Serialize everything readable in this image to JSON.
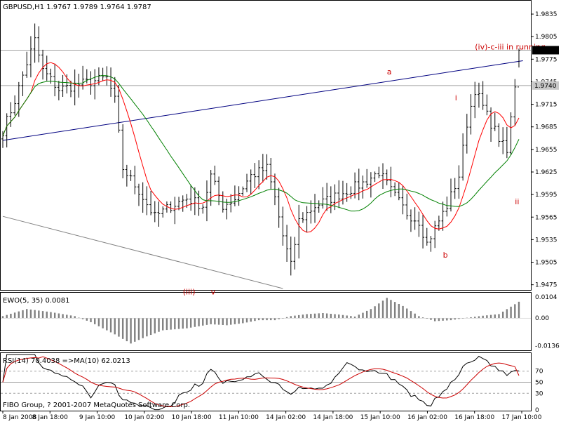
{
  "header": {
    "symbol_line": "GBPUSD,H1  1.9767 1.9789 1.9764 1.9787"
  },
  "footer": {
    "copyright": "FIBO Group, ? 2001-2007 MetaQuotes Software Corp."
  },
  "chart_data": [
    {
      "type": "candlestick",
      "panel": "main",
      "symbol": "GBPUSD",
      "timeframe": "H1",
      "ohlc_last": {
        "open": 1.9767,
        "high": 1.9789,
        "low": 1.9764,
        "close": 1.9787
      },
      "y_ticks": [
        "1.9835",
        "1.9805",
        "1.9775",
        "1.9745",
        "1.9715",
        "1.9685",
        "1.9655",
        "1.9625",
        "1.9595",
        "1.9565",
        "1.9535",
        "1.9505",
        "1.9475"
      ],
      "ylim": [
        1.947,
        1.985
      ],
      "price_markers": [
        {
          "text": "1.9787",
          "value": 1.9787,
          "style": "black"
        },
        {
          "text": "1.9740",
          "value": 1.974,
          "style": "gray"
        }
      ],
      "x_ticks": [
        "8 Jan 2008",
        "8 Jan 18:00",
        "9 Jan 10:00",
        "10 Jan 02:00",
        "10 Jan 18:00",
        "11 Jan 10:00",
        "14 Jan 02:00",
        "14 Jan 18:00",
        "15 Jan 10:00",
        "16 Jan 02:00",
        "16 Jan 18:00",
        "17 Jan 10:00"
      ],
      "bar_count": 130,
      "close_anchors": [
        [
          0,
          1.968
        ],
        [
          3,
          1.972
        ],
        [
          6,
          1.977
        ],
        [
          8,
          1.98
        ],
        [
          10,
          1.976
        ],
        [
          14,
          1.9735
        ],
        [
          18,
          1.974
        ],
        [
          22,
          1.9745
        ],
        [
          26,
          1.975
        ],
        [
          28,
          1.972
        ],
        [
          30,
          1.963
        ],
        [
          34,
          1.96
        ],
        [
          38,
          1.9565
        ],
        [
          42,
          1.958
        ],
        [
          46,
          1.959
        ],
        [
          50,
          1.958
        ],
        [
          52,
          1.962
        ],
        [
          55,
          1.958
        ],
        [
          58,
          1.959
        ],
        [
          62,
          1.962
        ],
        [
          66,
          1.963
        ],
        [
          68,
          1.959
        ],
        [
          70,
          1.954
        ],
        [
          72,
          1.95
        ],
        [
          74,
          1.956
        ],
        [
          78,
          1.958
        ],
        [
          82,
          1.959
        ],
        [
          86,
          1.96
        ],
        [
          90,
          1.961
        ],
        [
          94,
          1.9625
        ],
        [
          97,
          1.96
        ],
        [
          101,
          1.957
        ],
        [
          104,
          1.956
        ],
        [
          106,
          1.953
        ],
        [
          109,
          1.956
        ],
        [
          111,
          1.958
        ],
        [
          114,
          1.962
        ],
        [
          116,
          1.969
        ],
        [
          118,
          1.9735
        ],
        [
          121,
          1.97
        ],
        [
          123,
          1.968
        ],
        [
          126,
          1.965
        ],
        [
          129,
          1.9787
        ]
      ],
      "series": [
        {
          "name": "",
          "color": "#ff0000"
        },
        {
          "name": "",
          "color": "#008000"
        }
      ],
      "annotations": [
        {
          "text": "(iv)-c-iii in running~",
          "bar": 118,
          "value": 1.9788
        },
        {
          "text": "a",
          "bar": 96,
          "value": 1.9755
        },
        {
          "text": "i",
          "bar": 113,
          "value": 1.972
        },
        {
          "text": "b",
          "bar": 110,
          "value": 1.9511
        },
        {
          "text": "ii",
          "bar": 128,
          "value": 1.9582
        },
        {
          "text": "(iii)",
          "bar": 45,
          "value": 1.9462
        },
        {
          "text": "v",
          "bar": 52,
          "value": 1.9462
        }
      ],
      "trendlines": [
        {
          "from": [
            0,
            1.9667
          ],
          "to": [
            130,
            1.9773
          ],
          "color": "#000080"
        },
        {
          "from": [
            0,
            1.9566
          ],
          "to": [
            70,
            1.947
          ],
          "color": "#808080"
        }
      ],
      "hlines": [
        {
          "value": 1.9787,
          "color": "#a0a0a0"
        },
        {
          "value": 1.974,
          "color": "#a0a0a0"
        }
      ]
    },
    {
      "type": "histogram",
      "panel": "ewo",
      "label": "EWO(5, 35) 0.0081",
      "y_ticks": [
        "0.0104",
        "0.00",
        "-0.0136"
      ],
      "ylim": [
        -0.0155,
        0.0115
      ],
      "shape": [
        [
          0,
          0.001
        ],
        [
          6,
          0.0045
        ],
        [
          12,
          0.003
        ],
        [
          18,
          0.001
        ],
        [
          22,
          -0.002
        ],
        [
          28,
          -0.008
        ],
        [
          32,
          -0.0125
        ],
        [
          36,
          -0.009
        ],
        [
          40,
          -0.006
        ],
        [
          46,
          -0.005
        ],
        [
          52,
          -0.003
        ],
        [
          56,
          -0.0035
        ],
        [
          60,
          -0.0025
        ],
        [
          64,
          -0.001
        ],
        [
          68,
          -0.001
        ],
        [
          72,
          0.001
        ],
        [
          76,
          0.002
        ],
        [
          80,
          0.0025
        ],
        [
          84,
          0.0018
        ],
        [
          88,
          0.0008
        ],
        [
          92,
          0.0045
        ],
        [
          96,
          0.01
        ],
        [
          100,
          0.006
        ],
        [
          104,
          0.001
        ],
        [
          108,
          -0.0015
        ],
        [
          112,
          -0.001
        ],
        [
          116,
          0.0002
        ],
        [
          120,
          0.0012
        ],
        [
          124,
          0.002
        ],
        [
          129,
          0.0081
        ]
      ]
    },
    {
      "type": "line",
      "panel": "rsi",
      "label": "RSI(14) 70.4038  =>MA(10) 62.0213",
      "y_ticks": [
        "70",
        "50",
        "30",
        "0"
      ],
      "ylim": [
        0,
        100
      ],
      "levels": [
        70,
        50,
        30
      ],
      "series": [
        {
          "name": "",
          "color": "#000000",
          "last": 70.4038
        },
        {
          "name": "",
          "color": "#cc0000",
          "last": 62.0213
        }
      ]
    }
  ]
}
